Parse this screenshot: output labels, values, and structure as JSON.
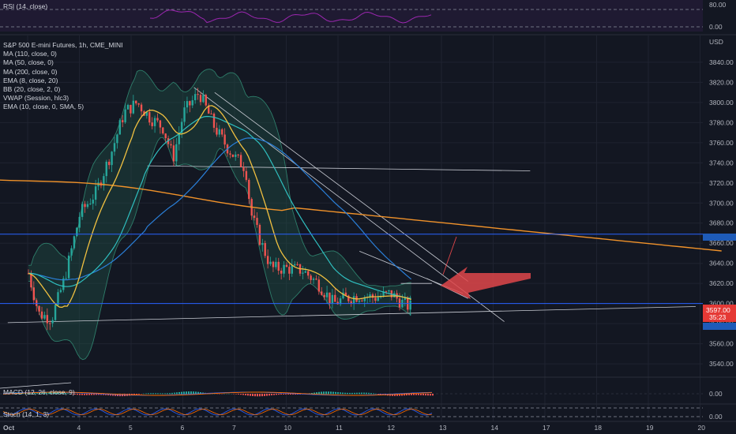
{
  "header": {
    "symbol_title": "S&P 500 E-mini Futures, 1h, CME_MINI",
    "currency": "USD"
  },
  "indicators": [
    "MA (110, close, 0)",
    "MA (50, close, 0)",
    "MA (200, close, 0)",
    "EMA (8, close, 20)",
    "BB (20, close, 2, 0)",
    "VWAP (Session, hlc3)",
    "EMA (10, close, 0, SMA, 5)"
  ],
  "panes": {
    "rsi": {
      "label": "RSI (14, close)",
      "ticks": [
        "80.00",
        "0.00"
      ]
    },
    "macd": {
      "label": "MACD (12, 26, close, 9)",
      "tick": "0.00"
    },
    "stoch": {
      "label": "Stoch (14, 1, 3)",
      "tick": "0.00"
    }
  },
  "price_badge": {
    "value": "3597.00",
    "countdown": "35:23"
  },
  "colors": {
    "background": "#131722",
    "candle_up": "#26a69a",
    "candle_down": "#ef5350",
    "ma_yellow": "#f0c040",
    "ma_cyan": "#2fbfbf",
    "ma_blue": "#2a7fd8",
    "ma_orange": "#f0922a",
    "bb_fill": "#1e4e45",
    "arrow": "#e0464a",
    "rsi_line": "#9c27b0",
    "hline": "#2962ff"
  },
  "chart_data": {
    "type": "candlestick",
    "title": "S&P 500 E-mini Futures, 1h, CME_MINI",
    "x_ticks": [
      "Oct",
      "4",
      "5",
      "6",
      "7",
      "10",
      "11",
      "12",
      "13",
      "14",
      "17",
      "18",
      "19",
      "20"
    ],
    "y_ticks": [
      "3840.00",
      "3820.00",
      "3800.00",
      "3780.00",
      "3760.00",
      "3740.00",
      "3720.00",
      "3700.00",
      "3680.00",
      "3660.00",
      "3640.00",
      "3620.00",
      "3600.00",
      "3580.00",
      "3560.00",
      "3540.00"
    ],
    "ylim": [
      3533,
      3858
    ],
    "last_price": 3597.0,
    "horizontal_levels": [
      3669,
      3600
    ],
    "close_path": [
      {
        "day": 0.0,
        "close": 3630
      },
      {
        "day": 0.2,
        "close": 3590
      },
      {
        "day": 0.45,
        "close": 3585
      },
      {
        "day": 0.7,
        "close": 3625
      },
      {
        "day": 1.0,
        "close": 3690
      },
      {
        "day": 1.3,
        "close": 3710
      },
      {
        "day": 1.6,
        "close": 3750
      },
      {
        "day": 1.85,
        "close": 3790
      },
      {
        "day": 2.1,
        "close": 3800
      },
      {
        "day": 2.35,
        "close": 3785
      },
      {
        "day": 2.6,
        "close": 3775
      },
      {
        "day": 2.8,
        "close": 3745
      },
      {
        "day": 3.0,
        "close": 3790
      },
      {
        "day": 3.3,
        "close": 3810
      },
      {
        "day": 3.6,
        "close": 3775
      },
      {
        "day": 3.85,
        "close": 3755
      },
      {
        "day": 4.0,
        "close": 3745
      },
      {
        "day": 4.2,
        "close": 3735
      },
      {
        "day": 4.3,
        "close": 3690
      },
      {
        "day": 4.5,
        "close": 3660
      },
      {
        "day": 4.7,
        "close": 3635
      },
      {
        "day": 5.0,
        "close": 3635
      },
      {
        "day": 5.3,
        "close": 3633
      },
      {
        "day": 5.6,
        "close": 3620
      },
      {
        "day": 5.9,
        "close": 3600
      },
      {
        "day": 6.1,
        "close": 3605
      },
      {
        "day": 6.4,
        "close": 3608
      },
      {
        "day": 6.7,
        "close": 3606
      },
      {
        "day": 7.0,
        "close": 3610
      },
      {
        "day": 7.3,
        "close": 3598
      },
      {
        "day": 7.42,
        "close": 3597
      }
    ]
  }
}
